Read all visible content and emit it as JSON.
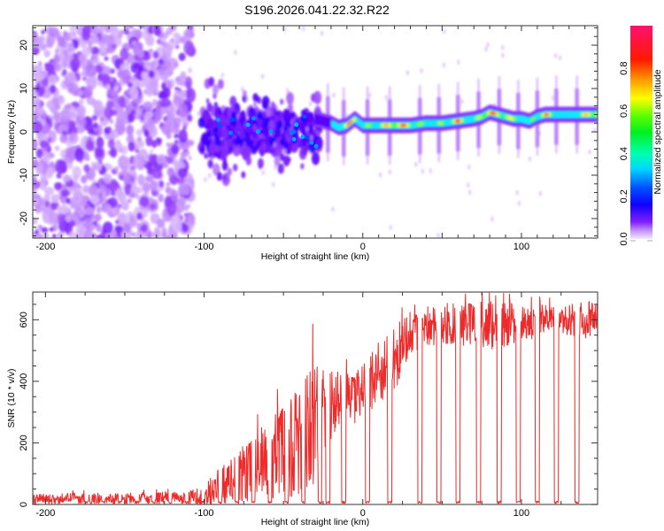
{
  "chart_data": [
    {
      "type": "heatmap",
      "title": "S196.2026.041.22.32.R22",
      "xlabel": "Height of straight line (km)",
      "ylabel": "Frequency (Hz)",
      "xlim": [
        -208,
        148
      ],
      "ylim": [
        -24.5,
        24.5
      ],
      "xticks": [
        -200,
        -100,
        0,
        100
      ],
      "yticks": [
        -20,
        -10,
        0,
        10,
        20
      ],
      "colorbar": {
        "label": "Normalized spectral amplitude",
        "range": [
          0.0,
          1.0
        ],
        "ticks": [
          "0.0",
          "0.2",
          "0.4",
          "0.6",
          "0.8"
        ],
        "colormap": [
          "#f0e0ff",
          "#a050ff",
          "#6000ff",
          "#0000ff",
          "#00a0ff",
          "#00ffff",
          "#00ff80",
          "#00ff00",
          "#80ff00",
          "#ffff00",
          "#ffa000",
          "#ff2000",
          "#ff0060"
        ]
      },
      "description": "Noise-only diffuse speckle (amplitude 0.0-0.15) for heights -208 to -110 km; broad scattered blob region (0.1-0.3) centered near 0 Hz from -100 to -30 km; a concentrated narrow line (0.5-0.95) starting near -30 km.",
      "ridge": {
        "x": [
          -30,
          -20,
          -15,
          -10,
          -5,
          0,
          10,
          20,
          30,
          40,
          50,
          60,
          70,
          75,
          80,
          85,
          90,
          95,
          100,
          105,
          110,
          115,
          120,
          130,
          140,
          148
        ],
        "freq_hz": [
          3,
          2,
          1,
          1.5,
          3,
          1.5,
          1.5,
          1.5,
          1.5,
          2,
          2,
          2.5,
          3,
          3.5,
          4.5,
          4,
          3.5,
          3,
          3,
          2.5,
          3.5,
          4,
          4,
          4,
          4,
          4
        ],
        "amplitude": [
          0.35,
          0.5,
          0.7,
          0.85,
          0.9,
          0.65,
          0.75,
          0.9,
          0.85,
          0.6,
          0.7,
          0.9,
          0.6,
          0.85,
          0.95,
          0.8,
          0.9,
          0.7,
          0.75,
          0.6,
          0.8,
          0.95,
          0.6,
          0.55,
          0.8,
          0.95
        ]
      }
    },
    {
      "type": "line",
      "title": "",
      "xlabel": "Height of straight line (km)",
      "ylabel": "SNR (10 * v/v)",
      "xlim": [
        -208,
        148
      ],
      "ylim": [
        0,
        690
      ],
      "xticks": [
        -200,
        -100,
        0,
        100
      ],
      "yticks": [
        0,
        200,
        400,
        600
      ],
      "color": "#ee2a2a",
      "trend": {
        "x": [
          -208,
          -180,
          -150,
          -120,
          -110,
          -100,
          -90,
          -80,
          -70,
          -60,
          -50,
          -40,
          -30,
          -20,
          -10,
          0,
          10,
          20,
          30,
          40,
          60,
          80,
          100,
          120,
          148
        ],
        "snr_mean": [
          15,
          20,
          18,
          22,
          25,
          30,
          60,
          80,
          110,
          150,
          170,
          200,
          240,
          300,
          330,
          380,
          420,
          470,
          560,
          580,
          590,
          580,
          590,
          600,
          600
        ],
        "snr_peak": [
          40,
          45,
          45,
          50,
          60,
          80,
          150,
          200,
          270,
          330,
          400,
          450,
          610,
          490,
          470,
          500,
          560,
          620,
          660,
          670,
          690,
          690,
          680,
          670,
          690
        ]
      },
      "dropouts_x": [
        -22,
        -12,
        3,
        17,
        36,
        48,
        60,
        73,
        86,
        98,
        110,
        122,
        135
      ]
    }
  ]
}
